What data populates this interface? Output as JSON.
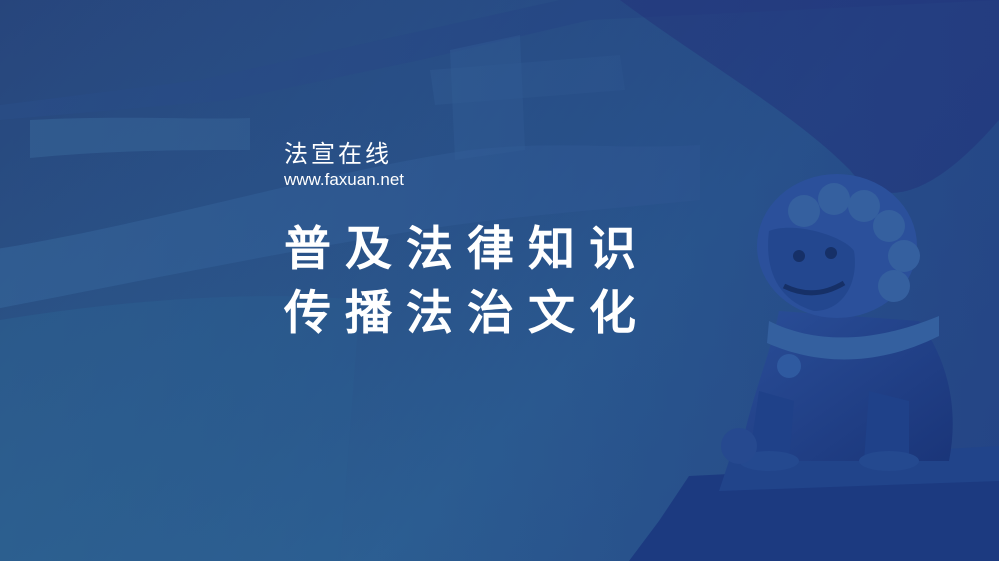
{
  "brand": {
    "name": "法宣在线",
    "url": "www.faxuan.net"
  },
  "headline": {
    "line1": "普及法律知识",
    "line2": "传播法治文化"
  },
  "colors": {
    "background_dark": "#27457c",
    "background_mid": "#2d5f8f",
    "text": "#ffffff",
    "lion_tint": "#1e3f86"
  },
  "decor": {
    "background_icon": "large-faint-character-strokes",
    "statue_icon": "stone-guardian-lion-icon"
  }
}
